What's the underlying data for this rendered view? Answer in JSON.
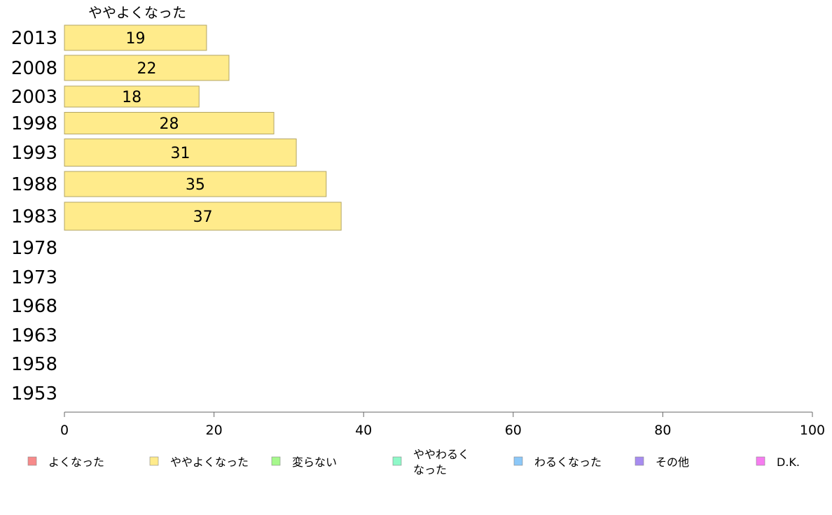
{
  "chart_data": {
    "type": "bar",
    "orientation": "horizontal",
    "series_title": "ややよくなった",
    "categories": [
      "2013",
      "2008",
      "2003",
      "1998",
      "1993",
      "1988",
      "1983",
      "1978",
      "1973",
      "1968",
      "1963",
      "1958",
      "1953"
    ],
    "series": [
      {
        "name": "ややよくなった",
        "color": "#ffeb8b",
        "values": [
          19,
          22,
          18,
          28,
          31,
          35,
          37,
          null,
          null,
          null,
          null,
          null,
          null
        ]
      }
    ],
    "xlim": [
      0,
      100
    ],
    "xticks": [
      0,
      20,
      40,
      60,
      80,
      100
    ],
    "grid": false,
    "legend_position": "bottom",
    "legend": [
      {
        "label": "よくなった",
        "color": "#f78a8a"
      },
      {
        "label": "ややよくなった",
        "color": "#ffeb8b"
      },
      {
        "label": "変らない",
        "color": "#a6f88c"
      },
      {
        "label": "ややわるく\nなった",
        "color": "#8ff8c8"
      },
      {
        "label": "わるくなった",
        "color": "#8cc8f8"
      },
      {
        "label": "その他",
        "color": "#a78cf0"
      },
      {
        "label": "D.K.",
        "color": "#f67cf0"
      }
    ]
  }
}
